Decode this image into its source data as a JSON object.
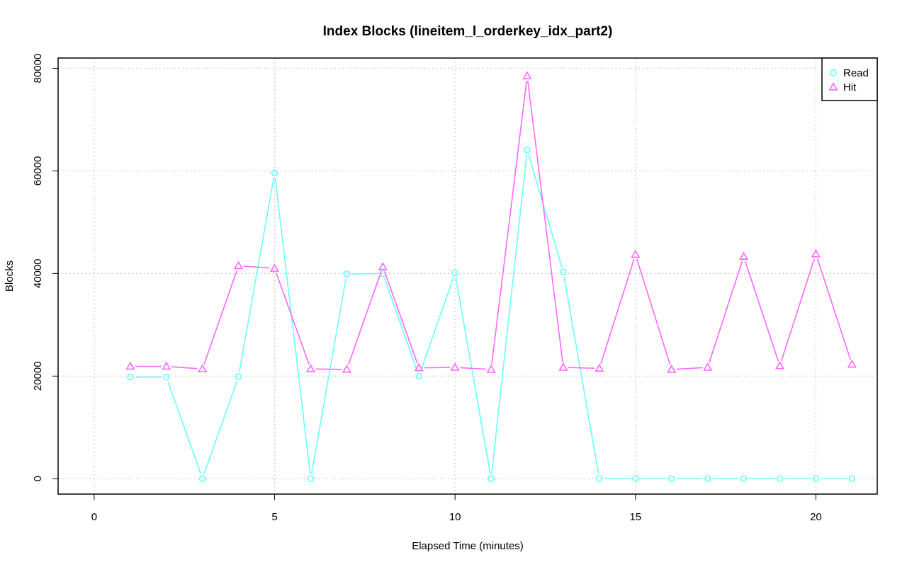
{
  "chart_data": {
    "type": "line",
    "title": "Index Blocks (lineitem_l_orderkey_idx_part2)",
    "xlabel": "Elapsed Time (minutes)",
    "ylabel": "Blocks",
    "xlim": [
      -1,
      21.7
    ],
    "ylim": [
      -3000,
      82000
    ],
    "x_ticks": [
      0,
      5,
      10,
      15,
      20
    ],
    "y_ticks": [
      0,
      20000,
      40000,
      60000,
      80000
    ],
    "x_tick_labels": [
      "0",
      "5",
      "10",
      "15",
      "20"
    ],
    "y_tick_labels": [
      "0",
      "20000",
      "40000",
      "60000",
      "80000"
    ],
    "grid": true,
    "legend_position": "top-right",
    "x": [
      1,
      2,
      3,
      4,
      5,
      6,
      7,
      8,
      9,
      10,
      11,
      12,
      13,
      14,
      15,
      16,
      17,
      18,
      19,
      20,
      21
    ],
    "series": [
      {
        "name": "Read",
        "color": "#66ffff",
        "marker": "circle",
        "values": [
          19800,
          19800,
          0,
          19900,
          59600,
          0,
          39900,
          40000,
          20000,
          40100,
          0,
          64100,
          40300,
          0,
          0,
          0,
          0,
          0,
          0,
          0,
          0
        ]
      },
      {
        "name": "Hit",
        "color": "#ff66ff",
        "marker": "triangle",
        "values": [
          21900,
          21900,
          21400,
          41500,
          41000,
          21400,
          21300,
          41300,
          21600,
          21700,
          21300,
          78500,
          21700,
          21500,
          43700,
          21300,
          21700,
          43300,
          22000,
          43800,
          22300
        ]
      }
    ]
  }
}
